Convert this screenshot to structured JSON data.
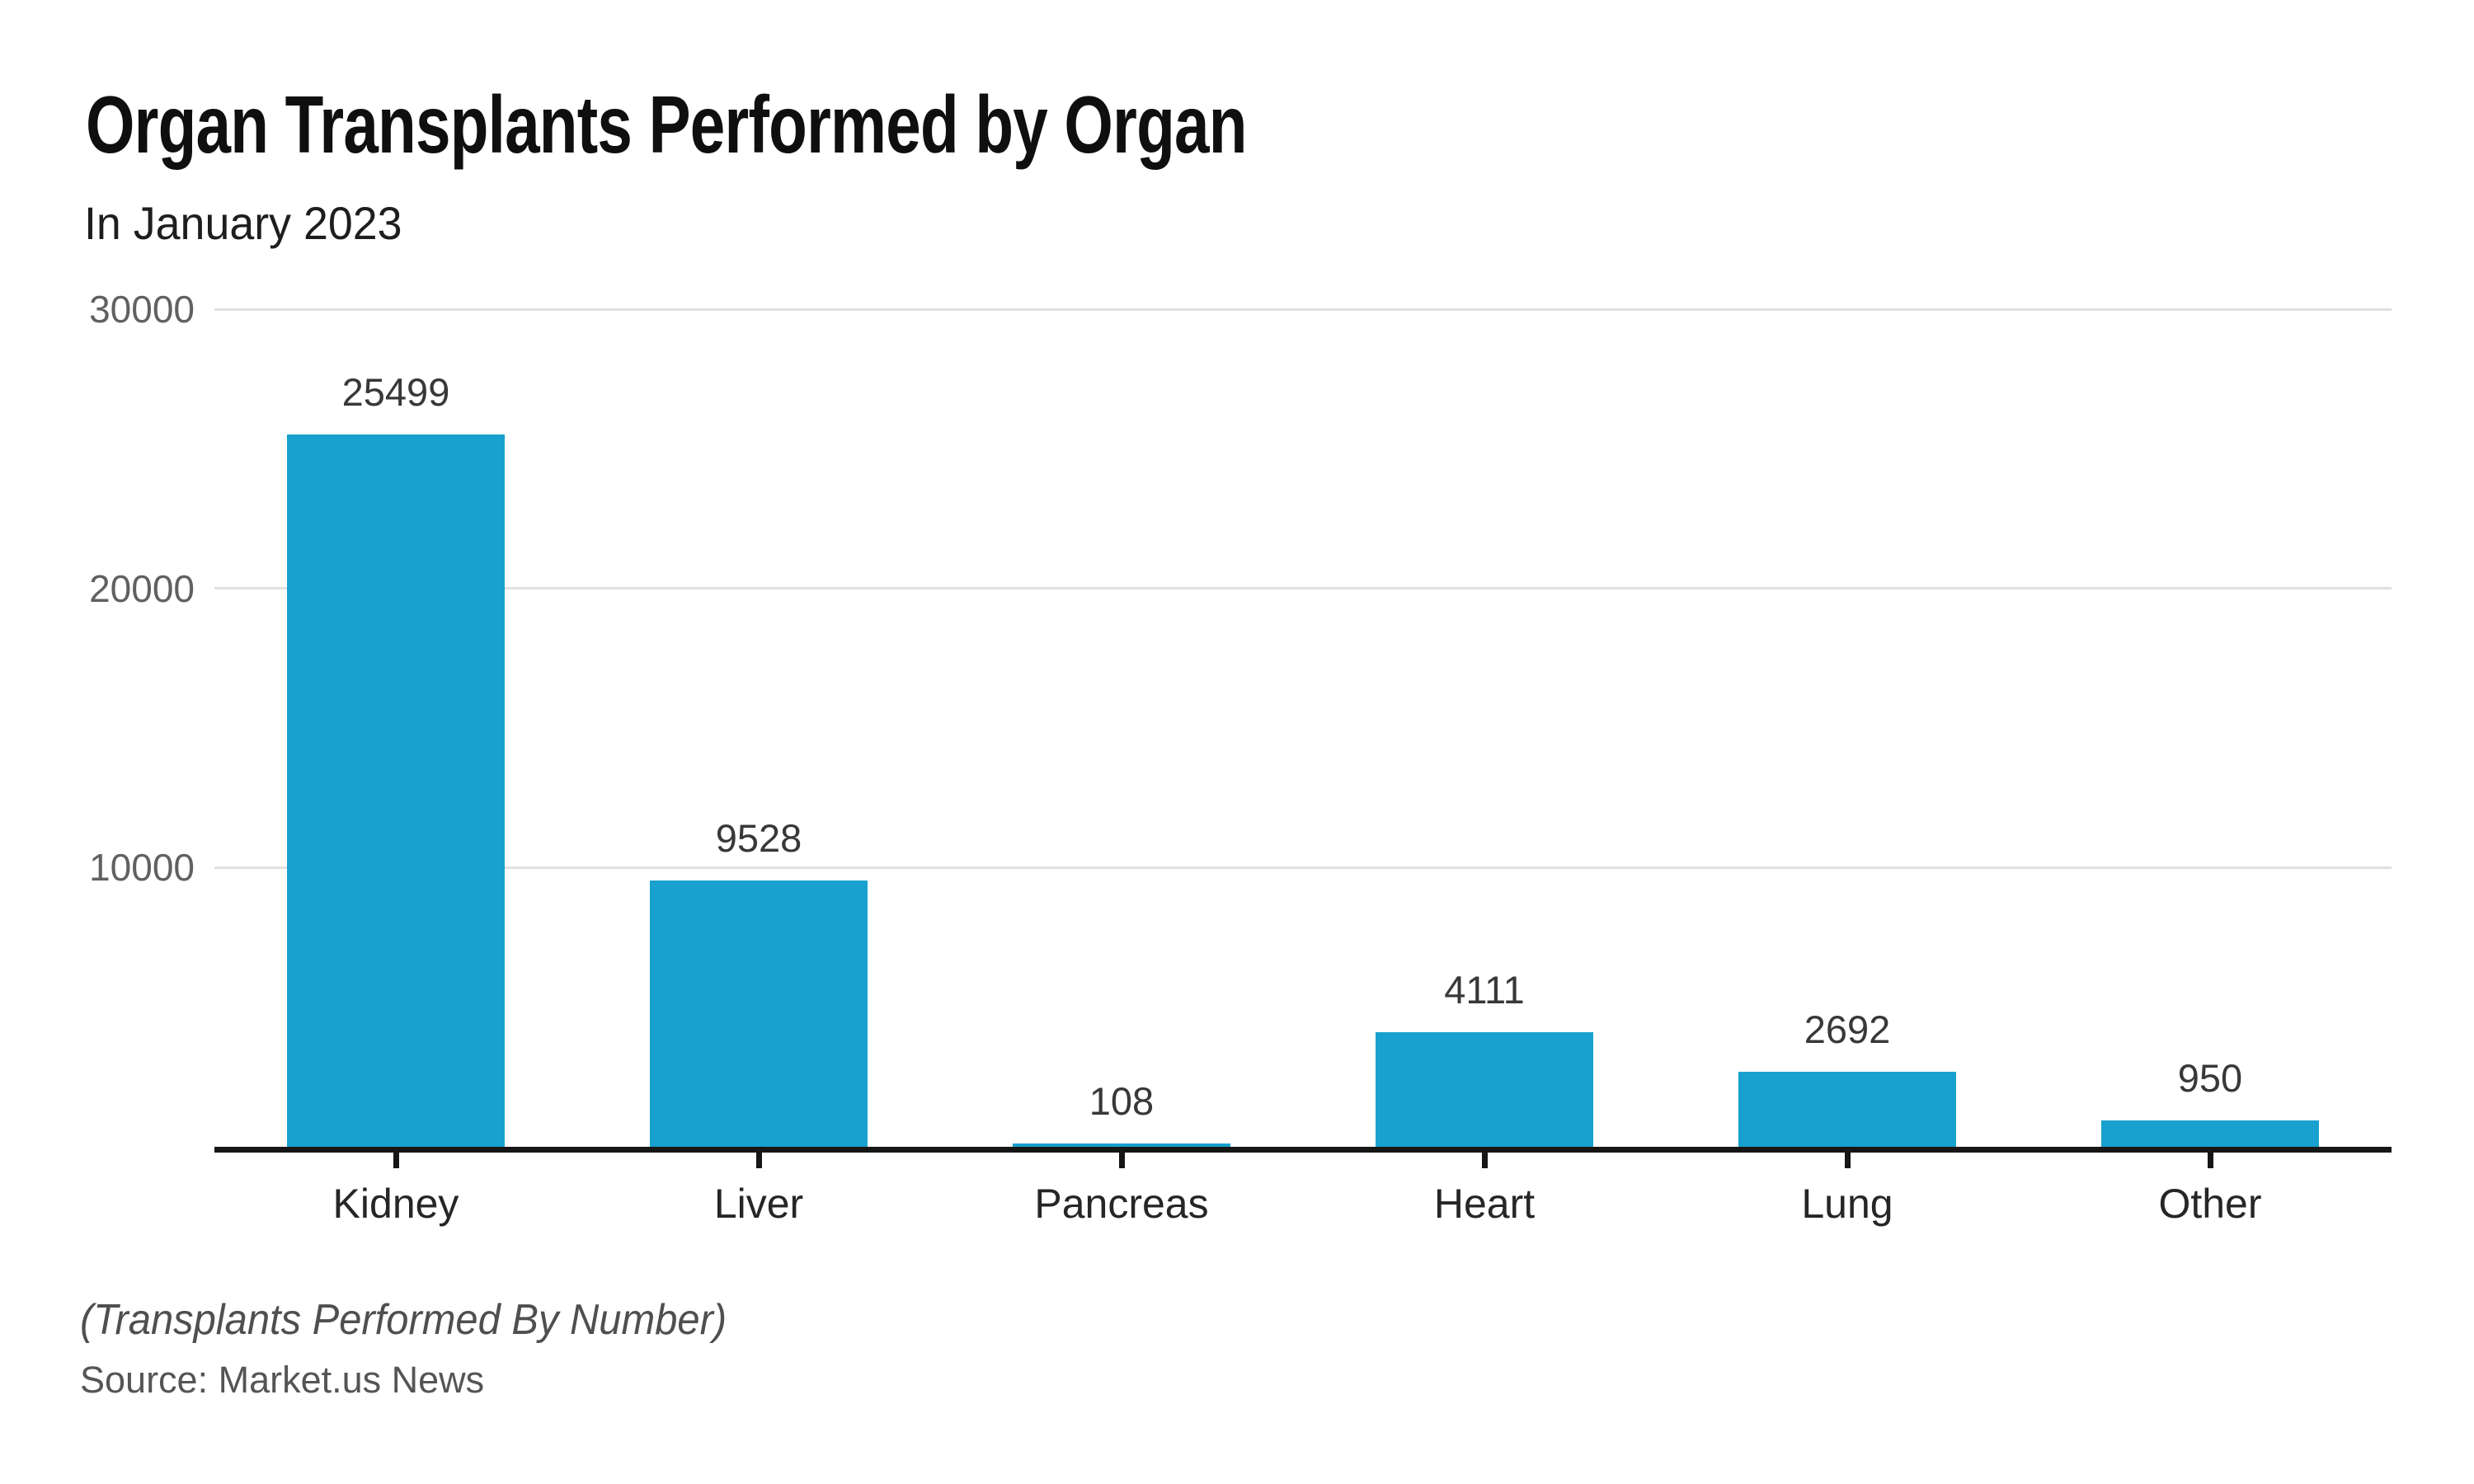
{
  "chart_data": {
    "type": "bar",
    "title": "Organ Transplants Performed by Organ",
    "subtitle": "In January 2023",
    "categories": [
      "Kidney",
      "Liver",
      "Pancreas",
      "Heart",
      "Lung",
      "Other"
    ],
    "values": [
      25499,
      9528,
      108,
      4111,
      2692,
      950
    ],
    "value_labels": [
      "25499",
      "9528",
      "108",
      "4111",
      "2692",
      "950"
    ],
    "ylim": [
      0,
      30000
    ],
    "yticks": [
      30000,
      20000,
      10000
    ],
    "ytick_labels": [
      "30000",
      "20000",
      "10000"
    ],
    "grid": "horizontal-only",
    "legend": "none",
    "bar_color": "#18a1ce",
    "note": "(Transplants Performed By Number)",
    "source": "Source: Market.us News"
  },
  "colors": {
    "bar": "#18a1ce",
    "axis_line": "#161616",
    "gridline": "#e0e0e0",
    "title_text": "#0f0f0f",
    "subtitle_text": "#1e1e1e",
    "ytick_text": "#616161",
    "value_label_text": "#383838",
    "xtick_text": "#262626",
    "footer_text": "#4f4f4f",
    "background": "#ffffff"
  }
}
